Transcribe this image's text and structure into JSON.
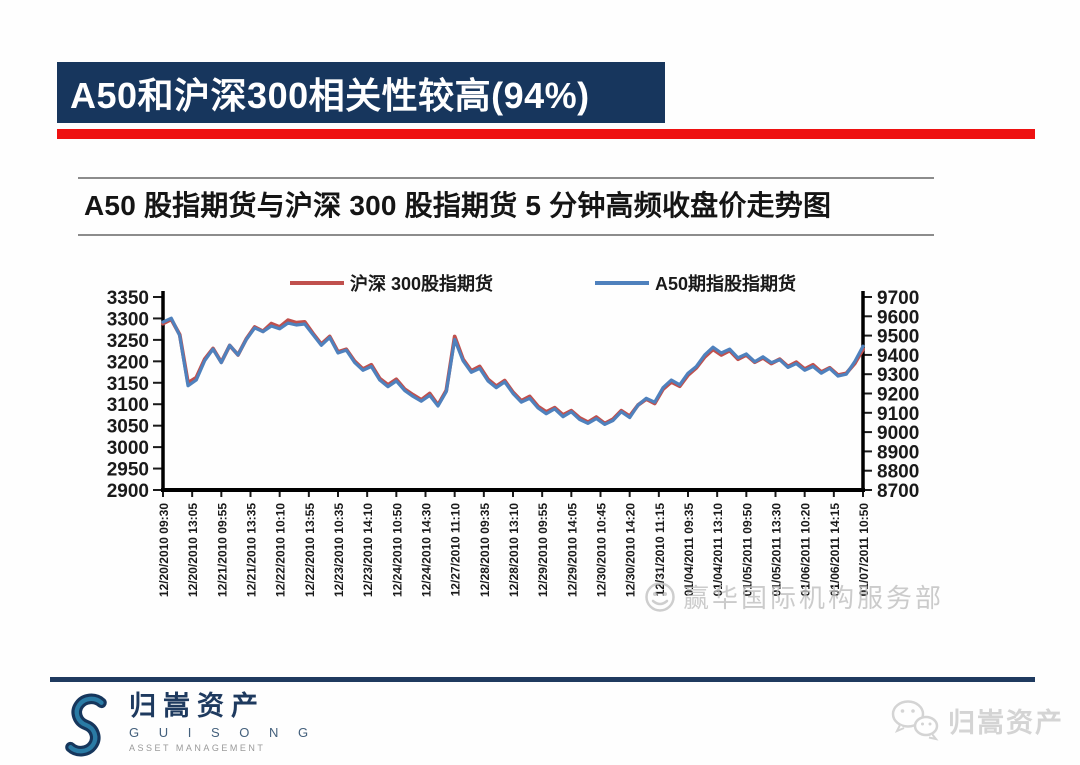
{
  "slide": {
    "title": "A50和沪深300相关性较高(94%)",
    "titlebar_bg": "#17365d",
    "accent_color": "#ee1111",
    "footer_line_color": "#1f3a5f"
  },
  "chart": {
    "title": "A50 股指期货与沪深 300 股指期货 5 分钟高频收盘价走势图"
  },
  "chart_data": {
    "type": "line",
    "title": "A50 股指期货与沪深 300 股指期货 5 分钟高频收盘价走势图",
    "legend_position": "top",
    "grid": false,
    "categories": [
      "12/20/2010 09:30",
      "12/20/2010 13:05",
      "12/21/2010 09:55",
      "12/21/2010 13:35",
      "12/22/2010 10:10",
      "12/22/2010 13:55",
      "12/23/2010 10:35",
      "12/23/2010 14:10",
      "12/24/2010 10:50",
      "12/24/2010 14:30",
      "12/27/2010 11:10",
      "12/28/2010 09:35",
      "12/28/2010 13:10",
      "12/29/2010 09:55",
      "12/29/2010 14:05",
      "12/30/2010 10:45",
      "12/30/2010 14:20",
      "12/31/2010 11:15",
      "01/04/2011 09:35",
      "01/04/2011 13:10",
      "01/05/2011 09:50",
      "01/05/2011 13:30",
      "01/06/2011 10:20",
      "01/06/2011 14:15",
      "01/07/2011 10:50"
    ],
    "left_axis": {
      "min": 2900,
      "max": 3350,
      "ticks": [
        3350,
        3300,
        3250,
        3200,
        3150,
        3100,
        3050,
        3000,
        2950,
        2900
      ]
    },
    "right_axis": {
      "min": 8700,
      "max": 9700,
      "ticks": [
        9700,
        9600,
        9500,
        9400,
        9300,
        9200,
        9100,
        9000,
        8900,
        8800,
        8700
      ]
    },
    "series": [
      {
        "name": "沪深 300股指期货",
        "color": "#c0504d",
        "axis": "left",
        "values": [
          3288,
          3298,
          3262,
          3150,
          3162,
          3205,
          3230,
          3198,
          3237,
          3215,
          3252,
          3280,
          3270,
          3288,
          3280,
          3296,
          3290,
          3292,
          3265,
          3240,
          3258,
          3222,
          3228,
          3200,
          3182,
          3192,
          3160,
          3145,
          3158,
          3135,
          3122,
          3110,
          3125,
          3098,
          3132,
          3258,
          3205,
          3178,
          3188,
          3158,
          3142,
          3155,
          3128,
          3108,
          3118,
          3095,
          3082,
          3092,
          3075,
          3085,
          3068,
          3058,
          3070,
          3055,
          3065,
          3085,
          3072,
          3098,
          3112,
          3102,
          3135,
          3152,
          3142,
          3168,
          3185,
          3210,
          3228,
          3215,
          3225,
          3205,
          3215,
          3198,
          3208,
          3195,
          3205,
          3188,
          3198,
          3182,
          3192,
          3175,
          3185,
          3168,
          3172,
          3195,
          3228
        ]
      },
      {
        "name": "A50期指股指期货",
        "color": "#4f81bd",
        "axis": "right",
        "values": [
          9570,
          9590,
          9500,
          9240,
          9270,
          9370,
          9430,
          9360,
          9450,
          9400,
          9480,
          9540,
          9520,
          9550,
          9535,
          9565,
          9555,
          9560,
          9505,
          9450,
          9490,
          9410,
          9425,
          9360,
          9320,
          9340,
          9270,
          9235,
          9265,
          9215,
          9185,
          9160,
          9190,
          9135,
          9210,
          9480,
          9370,
          9310,
          9330,
          9265,
          9230,
          9260,
          9200,
          9155,
          9175,
          9125,
          9095,
          9120,
          9080,
          9105,
          9065,
          9045,
          9070,
          9040,
          9060,
          9105,
          9075,
          9140,
          9175,
          9155,
          9230,
          9270,
          9245,
          9305,
          9340,
          9400,
          9440,
          9410,
          9430,
          9385,
          9405,
          9365,
          9390,
          9360,
          9375,
          9335,
          9355,
          9320,
          9340,
          9305,
          9330,
          9290,
          9300,
          9365,
          9445
        ]
      }
    ]
  },
  "watermark": {
    "icon": "smiley-face-icon",
    "text": "赢华国际机构服务部"
  },
  "footer": {
    "company_cn": "归嵩资产",
    "company_en": "G U I S O N G",
    "company_sub": "ASSET MANAGEMENT",
    "wechat_label": "归嵩资产"
  }
}
